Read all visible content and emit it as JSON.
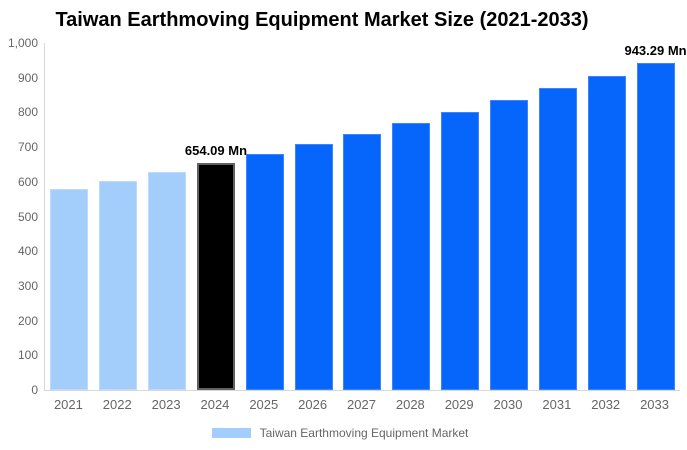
{
  "chart_data": {
    "type": "bar",
    "title": "Taiwan Earthmoving Equipment Market Size (2021-2033)",
    "xlabel": "",
    "ylabel": "",
    "unit": "Mn",
    "ylim": [
      0,
      1000
    ],
    "grid": false,
    "legend_position": "bottom",
    "yticks": [
      {
        "v": 0,
        "label": "0"
      },
      {
        "v": 100,
        "label": "100"
      },
      {
        "v": 200,
        "label": "200"
      },
      {
        "v": 300,
        "label": "300"
      },
      {
        "v": 400,
        "label": "400"
      },
      {
        "v": 500,
        "label": "500"
      },
      {
        "v": 600,
        "label": "600"
      },
      {
        "v": 700,
        "label": "700"
      },
      {
        "v": 800,
        "label": "800"
      },
      {
        "v": 900,
        "label": "900"
      },
      {
        "v": 1000,
        "label": "1,000"
      }
    ],
    "categories": [
      "2021",
      "2022",
      "2023",
      "2024",
      "2025",
      "2026",
      "2027",
      "2028",
      "2029",
      "2030",
      "2031",
      "2032",
      "2033"
    ],
    "series": [
      {
        "name": "Taiwan Earthmoving Equipment Market",
        "values": [
          578.9,
          602.9,
          627.9,
          654.09,
          681.2,
          709.5,
          738.9,
          769.7,
          801.6,
          834.9,
          869.6,
          905.7,
          943.29
        ]
      }
    ],
    "points": [
      {
        "year": "2021",
        "value": 578.9,
        "segment": "historical"
      },
      {
        "year": "2022",
        "value": 602.9,
        "segment": "historical"
      },
      {
        "year": "2023",
        "value": 627.9,
        "segment": "historical"
      },
      {
        "year": "2024",
        "value": 654.09,
        "segment": "current",
        "label": "654.09 Mn"
      },
      {
        "year": "2025",
        "value": 681.2,
        "segment": "forecast"
      },
      {
        "year": "2026",
        "value": 709.5,
        "segment": "forecast"
      },
      {
        "year": "2027",
        "value": 738.9,
        "segment": "forecast"
      },
      {
        "year": "2028",
        "value": 769.7,
        "segment": "forecast"
      },
      {
        "year": "2029",
        "value": 801.6,
        "segment": "forecast"
      },
      {
        "year": "2030",
        "value": 834.9,
        "segment": "forecast"
      },
      {
        "year": "2031",
        "value": 869.6,
        "segment": "forecast"
      },
      {
        "year": "2032",
        "value": 905.7,
        "segment": "forecast"
      },
      {
        "year": "2033",
        "value": 943.29,
        "segment": "forecast",
        "label": "943.29 Mn"
      }
    ],
    "colors": {
      "historical": "#A3CDFB",
      "historical_border": "#BDDAFC",
      "current": "#000000",
      "current_border": "#616161",
      "forecast": "#0666FC",
      "forecast_border": "#3D85FC",
      "axis_line": "#D8D8D8",
      "tick_text": "#666666",
      "label_text": "#000000"
    },
    "legend": [
      {
        "label": "Taiwan Earthmoving Equipment Market",
        "color_key": "historical"
      }
    ]
  }
}
